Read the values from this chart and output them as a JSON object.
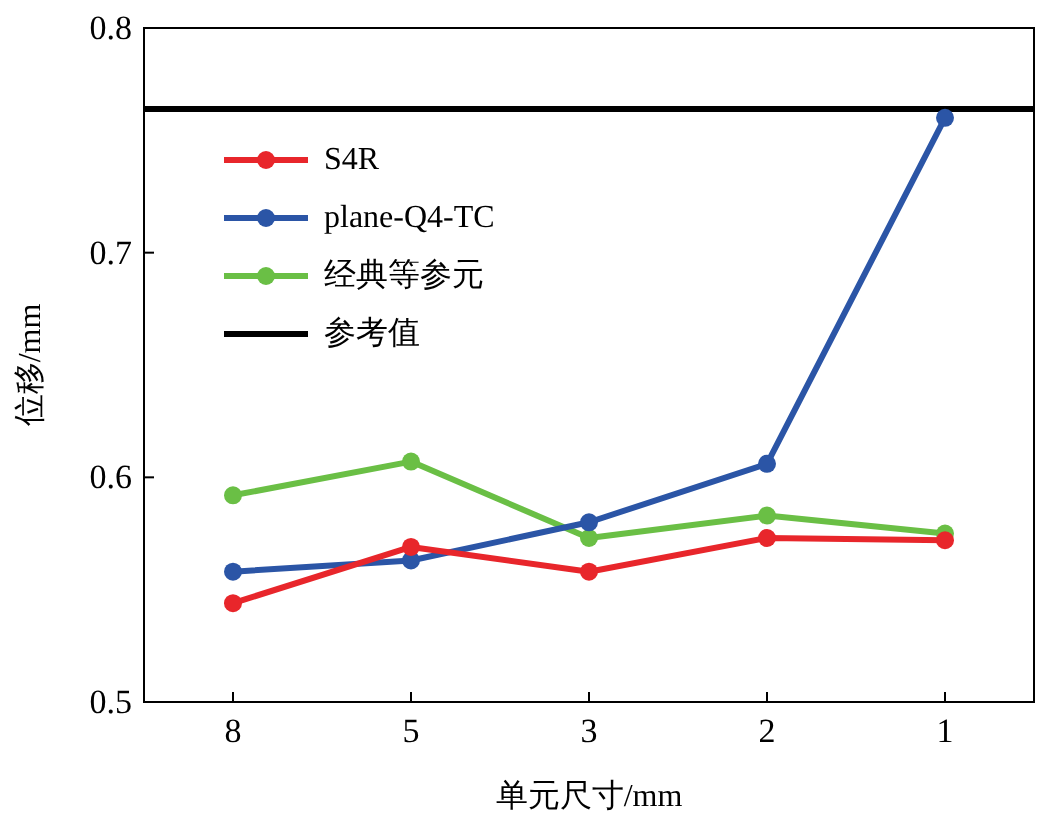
{
  "chart_data": {
    "type": "line",
    "xlabel": "单元尺寸/mm",
    "ylabel": "位移/mm",
    "categories": [
      "8",
      "5",
      "3",
      "2",
      "1"
    ],
    "series": [
      {
        "name": "S4R",
        "color": "#e8262b",
        "values": [
          0.544,
          0.569,
          0.558,
          0.573,
          0.572
        ]
      },
      {
        "name": "plane-Q4-TC",
        "color": "#2b55a6",
        "values": [
          0.558,
          0.563,
          0.58,
          0.606,
          0.76
        ]
      },
      {
        "name": "经典等参元",
        "color": "#6abf45",
        "values": [
          0.592,
          0.607,
          0.573,
          0.583,
          0.575
        ]
      }
    ],
    "ref_lines": [
      {
        "axis": "y",
        "value": 0.764,
        "label": "参考值",
        "color": "#000000"
      }
    ],
    "ylim": [
      0.5,
      0.8
    ],
    "yticks": [
      0.5,
      0.6,
      0.7,
      0.8
    ],
    "marker": "circle",
    "line_style": "solid",
    "legend": "top left",
    "grid": false
  }
}
